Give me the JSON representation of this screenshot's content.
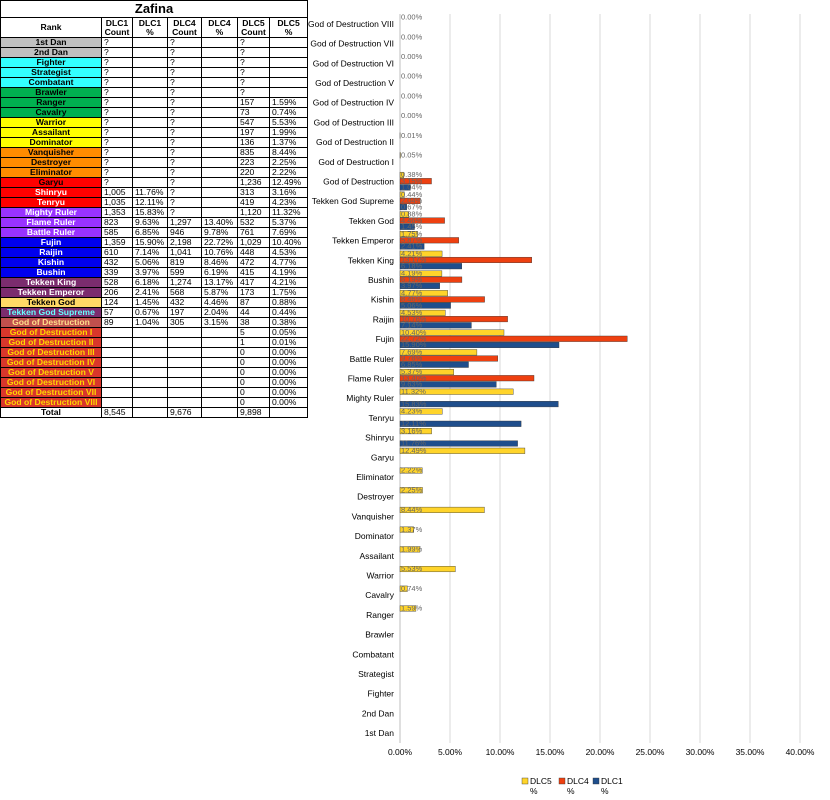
{
  "table": {
    "title": "Zafina",
    "headers": [
      "Rank",
      "DLC1\nCount",
      "DLC1\n%",
      "DLC4\nCount",
      "DLC4\n%",
      "DLC5\nCount",
      "DLC5\n%"
    ],
    "rows": [
      {
        "rank": "1st Dan",
        "bg": "#c0c0c0",
        "fg": "#000000",
        "c": [
          "?",
          "",
          "?",
          "",
          "?",
          ""
        ]
      },
      {
        "rank": "2nd Dan",
        "bg": "#c0c0c0",
        "fg": "#000000",
        "c": [
          "?",
          "",
          "?",
          "",
          "?",
          ""
        ]
      },
      {
        "rank": "Fighter",
        "bg": "#33ffff",
        "fg": "#000000",
        "c": [
          "?",
          "",
          "?",
          "",
          "?",
          ""
        ]
      },
      {
        "rank": "Strategist",
        "bg": "#33ffff",
        "fg": "#000000",
        "c": [
          "?",
          "",
          "?",
          "",
          "?",
          ""
        ]
      },
      {
        "rank": "Combatant",
        "bg": "#33ffff",
        "fg": "#000000",
        "c": [
          "?",
          "",
          "?",
          "",
          "?",
          ""
        ]
      },
      {
        "rank": "Brawler",
        "bg": "#00b050",
        "fg": "#000000",
        "c": [
          "?",
          "",
          "?",
          "",
          "?",
          ""
        ]
      },
      {
        "rank": "Ranger",
        "bg": "#00b050",
        "fg": "#000000",
        "c": [
          "?",
          "",
          "?",
          "",
          "157",
          "1.59%"
        ]
      },
      {
        "rank": "Cavalry",
        "bg": "#00b050",
        "fg": "#000000",
        "c": [
          "?",
          "",
          "?",
          "",
          "73",
          "0.74%"
        ]
      },
      {
        "rank": "Warrior",
        "bg": "#ffff00",
        "fg": "#000000",
        "c": [
          "?",
          "",
          "?",
          "",
          "547",
          "5.53%"
        ]
      },
      {
        "rank": "Assailant",
        "bg": "#ffff00",
        "fg": "#000000",
        "c": [
          "?",
          "",
          "?",
          "",
          "197",
          "1.99%"
        ]
      },
      {
        "rank": "Dominator",
        "bg": "#ffff00",
        "fg": "#000000",
        "c": [
          "?",
          "",
          "?",
          "",
          "136",
          "1.37%"
        ]
      },
      {
        "rank": "Vanquisher",
        "bg": "#ff8c00",
        "fg": "#000000",
        "c": [
          "?",
          "",
          "?",
          "",
          "835",
          "8.44%"
        ]
      },
      {
        "rank": "Destroyer",
        "bg": "#ff8c00",
        "fg": "#000000",
        "c": [
          "?",
          "",
          "?",
          "",
          "223",
          "2.25%"
        ]
      },
      {
        "rank": "Eliminator",
        "bg": "#ff8c00",
        "fg": "#000000",
        "c": [
          "?",
          "",
          "?",
          "",
          "220",
          "2.22%"
        ]
      },
      {
        "rank": "Garyu",
        "bg": "#ff0000",
        "fg": "#000000",
        "c": [
          "?",
          "",
          "?",
          "",
          "1,236",
          "12.49%"
        ]
      },
      {
        "rank": "Shinryu",
        "bg": "#ff0000",
        "fg": "#ffffff",
        "c": [
          "1,005",
          "11.76%",
          "?",
          "",
          "313",
          "3.16%"
        ]
      },
      {
        "rank": "Tenryu",
        "bg": "#ff0000",
        "fg": "#ffffff",
        "c": [
          "1,035",
          "12.11%",
          "?",
          "",
          "419",
          "4.23%"
        ]
      },
      {
        "rank": "Mighty Ruler",
        "bg": "#9933ff",
        "fg": "#ffffff",
        "c": [
          "1,353",
          "15.83%",
          "?",
          "",
          "1,120",
          "11.32%"
        ]
      },
      {
        "rank": "Flame Ruler",
        "bg": "#9933ff",
        "fg": "#ffffff",
        "c": [
          "823",
          "9.63%",
          "1,297",
          "13.40%",
          "532",
          "5.37%"
        ]
      },
      {
        "rank": "Battle Ruler",
        "bg": "#9933ff",
        "fg": "#ffffff",
        "c": [
          "585",
          "6.85%",
          "946",
          "9.78%",
          "761",
          "7.69%"
        ]
      },
      {
        "rank": "Fujin",
        "bg": "#0000ee",
        "fg": "#ffffff",
        "c": [
          "1,359",
          "15.90%",
          "2,198",
          "22.72%",
          "1,029",
          "10.40%"
        ]
      },
      {
        "rank": "Raijin",
        "bg": "#0000ee",
        "fg": "#ffffff",
        "c": [
          "610",
          "7.14%",
          "1,041",
          "10.76%",
          "448",
          "4.53%"
        ]
      },
      {
        "rank": "Kishin",
        "bg": "#0000ee",
        "fg": "#ffffff",
        "c": [
          "432",
          "5.06%",
          "819",
          "8.46%",
          "472",
          "4.77%"
        ]
      },
      {
        "rank": "Bushin",
        "bg": "#0000ee",
        "fg": "#ffffff",
        "c": [
          "339",
          "3.97%",
          "599",
          "6.19%",
          "415",
          "4.19%"
        ]
      },
      {
        "rank": "Tekken King",
        "bg": "#7b2c6e",
        "fg": "#ffffff",
        "c": [
          "528",
          "6.18%",
          "1,274",
          "13.17%",
          "417",
          "4.21%"
        ]
      },
      {
        "rank": "Tekken Emperor",
        "bg": "#7b2c6e",
        "fg": "#ffffff",
        "c": [
          "206",
          "2.41%",
          "568",
          "5.87%",
          "173",
          "1.75%"
        ]
      },
      {
        "rank": "Tekken God",
        "bg": "#ffd966",
        "fg": "#000000",
        "c": [
          "124",
          "1.45%",
          "432",
          "4.46%",
          "87",
          "0.88%"
        ]
      },
      {
        "rank": "Tekken God Supreme",
        "bg": "#7b2c6e",
        "fg": "#66ffff",
        "c": [
          "57",
          "0.67%",
          "197",
          "2.04%",
          "44",
          "0.44%"
        ]
      },
      {
        "rank": "God of Destruction",
        "bg": "#c0504d",
        "fg": "#ffe08a",
        "c": [
          "89",
          "1.04%",
          "305",
          "3.15%",
          "38",
          "0.38%"
        ]
      },
      {
        "rank": "God of Destruction I",
        "bg": "#d9372c",
        "fg": "#ffd700",
        "c": [
          "",
          "",
          "",
          "",
          "5",
          "0.05%"
        ]
      },
      {
        "rank": "God of Destruction II",
        "bg": "#d9372c",
        "fg": "#ffd700",
        "c": [
          "",
          "",
          "",
          "",
          "1",
          "0.01%"
        ]
      },
      {
        "rank": "God of Destruction III",
        "bg": "#d9372c",
        "fg": "#ffd700",
        "c": [
          "",
          "",
          "",
          "",
          "0",
          "0.00%"
        ]
      },
      {
        "rank": "God of Destruction IV",
        "bg": "#d9372c",
        "fg": "#ffd700",
        "c": [
          "",
          "",
          "",
          "",
          "0",
          "0.00%"
        ]
      },
      {
        "rank": "God of Destruction V",
        "bg": "#d9372c",
        "fg": "#ffd700",
        "c": [
          "",
          "",
          "",
          "",
          "0",
          "0.00%"
        ]
      },
      {
        "rank": "God of Destruction VI",
        "bg": "#d9372c",
        "fg": "#ffd700",
        "c": [
          "",
          "",
          "",
          "",
          "0",
          "0.00%"
        ]
      },
      {
        "rank": "God of Destruction VII",
        "bg": "#d9372c",
        "fg": "#ffd700",
        "c": [
          "",
          "",
          "",
          "",
          "0",
          "0.00%"
        ]
      },
      {
        "rank": "God of Destruction VIII",
        "bg": "#d9372c",
        "fg": "#ffd700",
        "c": [
          "",
          "",
          "",
          "",
          "0",
          "0.00%"
        ]
      }
    ],
    "total": {
      "label": "Total",
      "c": [
        "8,545",
        "",
        "9,676",
        "",
        "9,898",
        ""
      ]
    }
  },
  "chart_data": {
    "type": "bar",
    "orientation": "horizontal",
    "categories": [
      "1st Dan",
      "2nd Dan",
      "Fighter",
      "Strategist",
      "Combatant",
      "Brawler",
      "Ranger",
      "Cavalry",
      "Warrior",
      "Assailant",
      "Dominator",
      "Vanquisher",
      "Destroyer",
      "Eliminator",
      "Garyu",
      "Shinryu",
      "Tenryu",
      "Mighty Ruler",
      "Flame Ruler",
      "Battle Ruler",
      "Fujin",
      "Raijin",
      "Kishin",
      "Bushin",
      "Tekken King",
      "Tekken Emperor",
      "Tekken God",
      "Tekken God Supreme",
      "God of Destruction",
      "God of Destruction I",
      "God of Destruction II",
      "God of Destruction III",
      "God of Destruction IV",
      "God of Destruction V",
      "God of Destruction VI",
      "God of Destruction VII",
      "God of Destruction VIII"
    ],
    "series": [
      {
        "name": "DLC5 %",
        "color": "#ffd42a",
        "values": [
          null,
          null,
          null,
          null,
          null,
          null,
          1.59,
          0.74,
          5.53,
          1.99,
          1.37,
          8.44,
          2.25,
          2.22,
          12.49,
          3.16,
          4.23,
          11.32,
          5.37,
          7.69,
          10.4,
          4.53,
          4.77,
          4.19,
          4.21,
          1.75,
          0.88,
          0.44,
          0.38,
          0.05,
          0.01,
          0,
          0,
          0,
          0,
          0,
          0
        ]
      },
      {
        "name": "DLC4 %",
        "color": "#ee4010",
        "values": [
          null,
          null,
          null,
          null,
          null,
          null,
          null,
          null,
          null,
          null,
          null,
          null,
          null,
          null,
          null,
          null,
          null,
          null,
          13.4,
          9.78,
          22.72,
          10.76,
          8.46,
          6.19,
          13.17,
          5.87,
          4.46,
          2.04,
          3.15,
          null,
          null,
          null,
          null,
          null,
          null,
          null,
          null
        ]
      },
      {
        "name": "DLC1 %",
        "color": "#1f4e8c",
        "values": [
          null,
          null,
          null,
          null,
          null,
          null,
          null,
          null,
          null,
          null,
          null,
          null,
          null,
          null,
          null,
          11.76,
          12.11,
          15.83,
          9.63,
          6.85,
          15.9,
          7.14,
          5.06,
          3.97,
          6.18,
          2.41,
          1.45,
          0.67,
          1.04,
          null,
          null,
          null,
          null,
          null,
          null,
          null,
          null
        ]
      }
    ],
    "xlim": [
      0,
      40
    ],
    "x_ticks": [
      "0.00%",
      "5.00%",
      "10.00%",
      "15.00%",
      "20.00%",
      "25.00%",
      "30.00%",
      "35.00%",
      "40.00%"
    ],
    "grid": true,
    "legend": [
      "DLC5 %",
      "DLC4 %",
      "DLC1 %"
    ],
    "legend_position": "bottom"
  }
}
